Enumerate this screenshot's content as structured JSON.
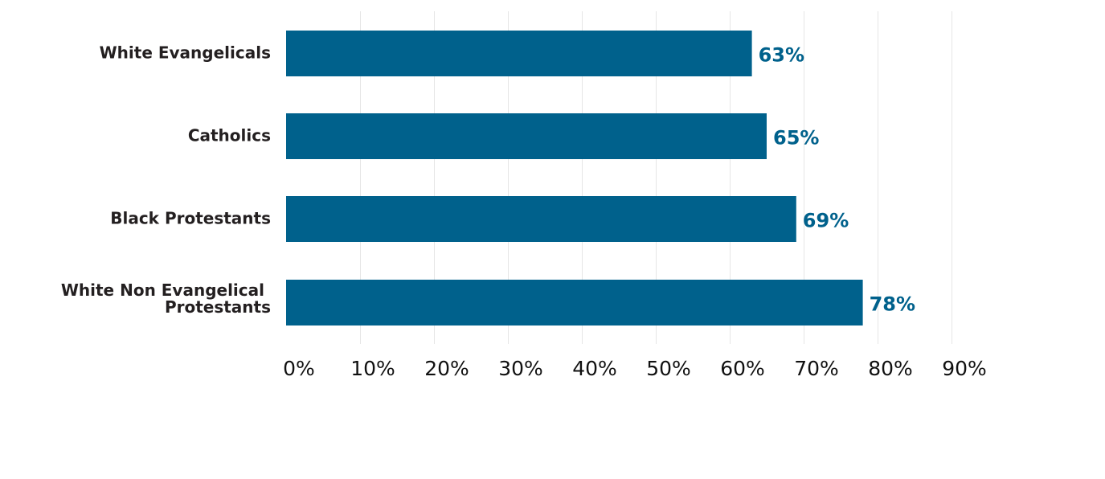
{
  "chart_data": {
    "type": "bar",
    "orientation": "horizontal",
    "title": "",
    "xlabel": "",
    "ylabel": "",
    "categories": [
      "White Evangelicals",
      "Catholics",
      "Black Protestants",
      "White Non Evangelical Protestants"
    ],
    "category_lines": [
      [
        "White Evangelicals"
      ],
      [
        "Catholics"
      ],
      [
        "Black Protestants"
      ],
      [
        "White Non Evangelical",
        "Protestants"
      ]
    ],
    "values": [
      63,
      65,
      69,
      78
    ],
    "value_labels": [
      "63%",
      "65%",
      "69%",
      "78%"
    ],
    "xlim": [
      0,
      90
    ],
    "x_ticks": [
      0,
      10,
      20,
      30,
      40,
      50,
      60,
      70,
      80,
      90
    ],
    "x_tick_labels": [
      "0%",
      "10%",
      "20%",
      "30%",
      "40%",
      "50%",
      "60%",
      "70%",
      "80%",
      "90%"
    ],
    "grid": "vertical",
    "legend": "none",
    "colors": {
      "bar": "#00618c",
      "value_label": "#00618c",
      "category_label": "#231f20",
      "tick_label": "#111111",
      "grid": "#e6e6e6"
    }
  }
}
